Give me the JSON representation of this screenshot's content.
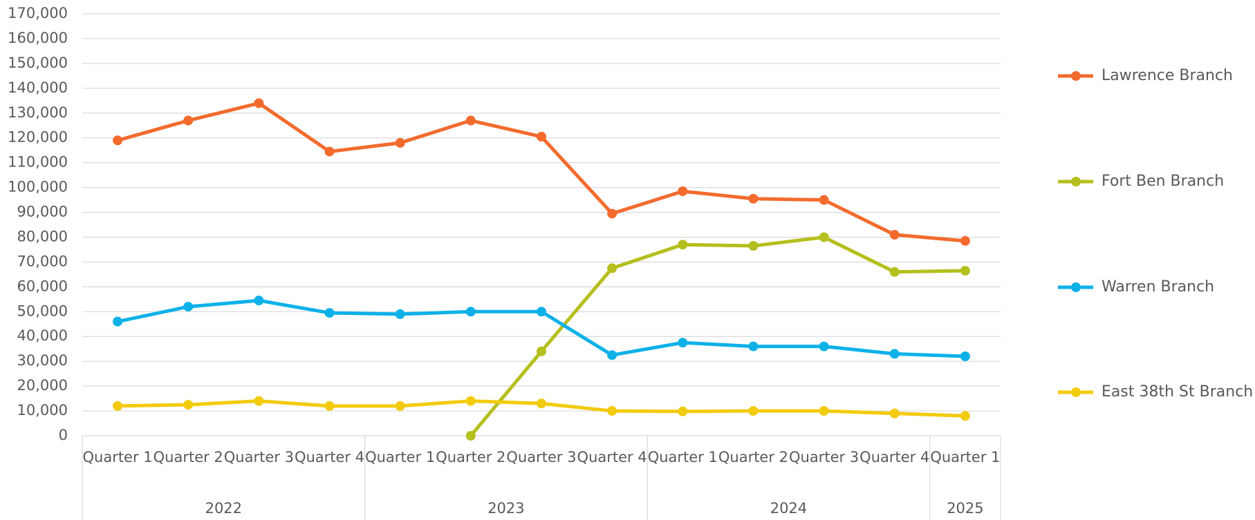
{
  "chart_data": {
    "type": "line",
    "categories": [
      "Quarter 1",
      "Quarter 2",
      "Quarter 3",
      "Quarter 4",
      "Quarter 1",
      "Quarter 2",
      "Quarter 3",
      "Quarter 4",
      "Quarter 1",
      "Quarter 2",
      "Quarter 3",
      "Quarter 4",
      "Quarter 1"
    ],
    "x_groups": [
      "2022",
      "2022",
      "2022",
      "2022",
      "2023",
      "2023",
      "2023",
      "2023",
      "2024",
      "2024",
      "2024",
      "2024",
      "2025"
    ],
    "series": [
      {
        "name": "Lawrence Branch",
        "color": "#f26b2d",
        "values": [
          119000,
          127000,
          134000,
          114500,
          118000,
          127000,
          120500,
          89500,
          98500,
          95500,
          95000,
          81000,
          78500
        ]
      },
      {
        "name": "Fort Ben Branch",
        "color": "#b5bf1d",
        "values": [
          null,
          null,
          null,
          null,
          null,
          0,
          34000,
          67500,
          77000,
          76500,
          80000,
          66000,
          66500
        ]
      },
      {
        "name": "Warren Branch",
        "color": "#0db1e8",
        "values": [
          46000,
          52000,
          54500,
          49500,
          49000,
          50000,
          50000,
          32500,
          37500,
          36000,
          36000,
          33000,
          32000
        ]
      },
      {
        "name": "East 38th St Branch",
        "color": "#f2cb0e",
        "values": [
          12000,
          12500,
          14000,
          12000,
          12000,
          14000,
          13000,
          10000,
          9800,
          10000,
          10000,
          9000,
          8000
        ]
      }
    ],
    "ylim": [
      0,
      170000
    ],
    "yticks": [
      0,
      {
        "value": 10000,
        "label": "10,000"
      },
      {
        "value": 20000,
        "label": "20,000"
      },
      {
        "value": 30000,
        "label": "30,000"
      },
      {
        "value": 40000,
        "label": "40,000"
      },
      {
        "value": 50000,
        "label": "50,000"
      },
      {
        "value": 60000,
        "label": "60,000"
      },
      {
        "value": 70000,
        "label": "70,000"
      },
      {
        "value": 80000,
        "label": "80,000"
      },
      {
        "value": 90000,
        "label": "90,000"
      },
      {
        "value": 100000,
        "label": "100,000"
      },
      {
        "value": 110000,
        "label": "110,000"
      },
      {
        "value": 120000,
        "label": "120,000"
      },
      {
        "value": 130000,
        "label": "130,000"
      },
      {
        "value": 140000,
        "label": "140,000"
      },
      {
        "value": 150000,
        "label": "150,000"
      },
      {
        "value": 160000,
        "label": "160,000"
      },
      {
        "value": 170000,
        "label": "170,000"
      }
    ],
    "grid": true,
    "legend": "right"
  }
}
